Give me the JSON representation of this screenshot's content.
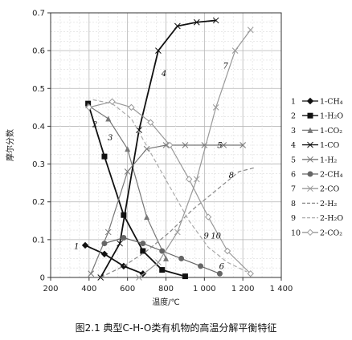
{
  "chart_data": {
    "type": "line",
    "title": "",
    "xlabel": "温度/℃",
    "ylabel": "摩尔分数",
    "xlim": [
      200,
      1400
    ],
    "ylim": [
      0,
      0.7
    ],
    "xticks": [
      "200",
      "400",
      "600",
      "800",
      "1 000",
      "1 200",
      "1 400"
    ],
    "yticks": [
      "0",
      "0.1",
      "0.2",
      "0.3",
      "0.4",
      "0.5",
      "0.6",
      "0.7"
    ],
    "grid": true,
    "legend_position": "right",
    "series": [
      {
        "name": "1-CH₄",
        "label": "1",
        "x": [
          380,
          480,
          580,
          680
        ],
        "y": [
          0.085,
          0.062,
          0.03,
          0.01
        ],
        "color": "#111111",
        "style": "solid",
        "marker": "diamond"
      },
      {
        "name": "1-H₂O",
        "label": "2",
        "x": [
          395,
          480,
          580,
          680,
          780,
          900
        ],
        "y": [
          0.46,
          0.32,
          0.165,
          0.07,
          0.02,
          0.003
        ],
        "color": "#111111",
        "style": "solid",
        "marker": "square"
      },
      {
        "name": "1-CO₂",
        "label": "3",
        "x": [
          395,
          500,
          600,
          700,
          800
        ],
        "y": [
          0.455,
          0.42,
          0.34,
          0.16,
          0.05
        ],
        "color": "#777777",
        "style": "solid",
        "marker": "triangle"
      },
      {
        "name": "1-CO",
        "label": "4",
        "x": [
          460,
          560,
          660,
          760,
          860,
          960,
          1060
        ],
        "y": [
          0.0,
          0.09,
          0.39,
          0.6,
          0.665,
          0.675,
          0.68
        ],
        "color": "#111111",
        "style": "solid",
        "marker": "x"
      },
      {
        "name": "1-H₂",
        "label": "5",
        "x": [
          410,
          500,
          600,
          700,
          800,
          900,
          1000,
          1100,
          1200
        ],
        "y": [
          0.01,
          0.12,
          0.28,
          0.34,
          0.35,
          0.35,
          0.35,
          0.35,
          0.35
        ],
        "color": "#777777",
        "style": "solid",
        "marker": "x"
      },
      {
        "name": "2-CH₄",
        "label": "6",
        "x": [
          480,
          580,
          680,
          780,
          880,
          980,
          1080
        ],
        "y": [
          0.09,
          0.105,
          0.09,
          0.07,
          0.05,
          0.03,
          0.01
        ],
        "color": "#666666",
        "style": "solid",
        "marker": "circle"
      },
      {
        "name": "2-CO",
        "label": "7",
        "x": [
          660,
          760,
          860,
          960,
          1060,
          1160,
          1240
        ],
        "y": [
          0.0,
          0.04,
          0.12,
          0.26,
          0.45,
          0.6,
          0.655
        ],
        "color": "#999999",
        "style": "solid",
        "marker": "x"
      },
      {
        "name": "2-H₂",
        "label": "8",
        "x": [
          460,
          580,
          700,
          820,
          940,
          1060,
          1180,
          1260
        ],
        "y": [
          0.0,
          0.03,
          0.07,
          0.12,
          0.18,
          0.23,
          0.28,
          0.29
        ],
        "color": "#888888",
        "style": "dash",
        "marker": "none"
      },
      {
        "name": "2-H₂O",
        "label": "9",
        "x": [
          420,
          520,
          620,
          720,
          820,
          920,
          1020,
          1120,
          1220
        ],
        "y": [
          0.47,
          0.46,
          0.42,
          0.33,
          0.24,
          0.15,
          0.08,
          0.04,
          0.015
        ],
        "color": "#aaaaaa",
        "style": "dash",
        "marker": "none"
      },
      {
        "name": "2-CO₂",
        "label": "10",
        "x": [
          400,
          520,
          620,
          720,
          820,
          920,
          1020,
          1120,
          1240
        ],
        "y": [
          0.45,
          0.465,
          0.45,
          0.41,
          0.35,
          0.26,
          0.16,
          0.07,
          0.01
        ],
        "color": "#999999",
        "style": "solid",
        "marker": "diamond-open"
      }
    ],
    "curve_labels": [
      {
        "text": "1",
        "x": 335,
        "y": 0.083
      },
      {
        "text": "2",
        "x": 430,
        "y": 0.405
      },
      {
        "text": "3",
        "x": 510,
        "y": 0.37
      },
      {
        "text": "4",
        "x": 790,
        "y": 0.54
      },
      {
        "text": "5",
        "x": 1080,
        "y": 0.35
      },
      {
        "text": "6",
        "x": 1090,
        "y": 0.03
      },
      {
        "text": "7",
        "x": 1110,
        "y": 0.56
      },
      {
        "text": "8",
        "x": 1140,
        "y": 0.27
      },
      {
        "text": "9",
        "x": 1010,
        "y": 0.11
      },
      {
        "text": "10",
        "x": 1060,
        "y": 0.11
      }
    ]
  },
  "caption": "图2.1 典型C-H-O类有机物的高温分解平衡特征"
}
